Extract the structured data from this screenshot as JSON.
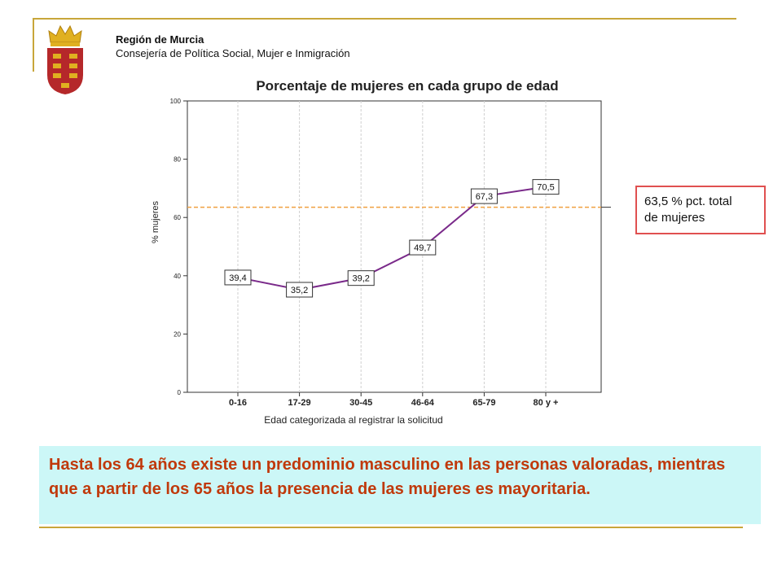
{
  "header": {
    "org_name": "Región de Murcia",
    "department": "Consejería de Política Social, Mujer e Inmigración"
  },
  "colors": {
    "accent_rule": "#c8a63a",
    "series_line": "#7a2a8a",
    "reference_line": "#f0a040",
    "callout_border": "#e05050",
    "note_background": "#ccf7f7",
    "note_text": "#c0390b"
  },
  "chart_data": {
    "type": "line",
    "title": "Porcentaje de mujeres en cada grupo de edad",
    "xlabel": "Edad categorizada al registrar la solicitud",
    "ylabel": "% mujeres",
    "categories": [
      "0-16",
      "17-29",
      "30-45",
      "46-64",
      "65-79",
      "80 y +"
    ],
    "series": [
      {
        "values": [
          39.4,
          35.2,
          39.2,
          49.7,
          67.3,
          70.5
        ]
      }
    ],
    "data_labels": [
      "39,4",
      "35,2",
      "39,2",
      "49,7",
      "67,3",
      "70,5"
    ],
    "ylim": [
      0,
      100
    ],
    "yticks": [
      0,
      20,
      40,
      60,
      80,
      100
    ],
    "grid": "vertical",
    "reference_line": {
      "value": 63.5
    }
  },
  "callout": {
    "line1": "63,5 % pct. total",
    "line2": "de mujeres"
  },
  "note": {
    "text": "Hasta los 64 años existe un predominio masculino en las personas valoradas, mientras que a partir de los 65 años la presencia de las mujeres es mayoritaria."
  }
}
